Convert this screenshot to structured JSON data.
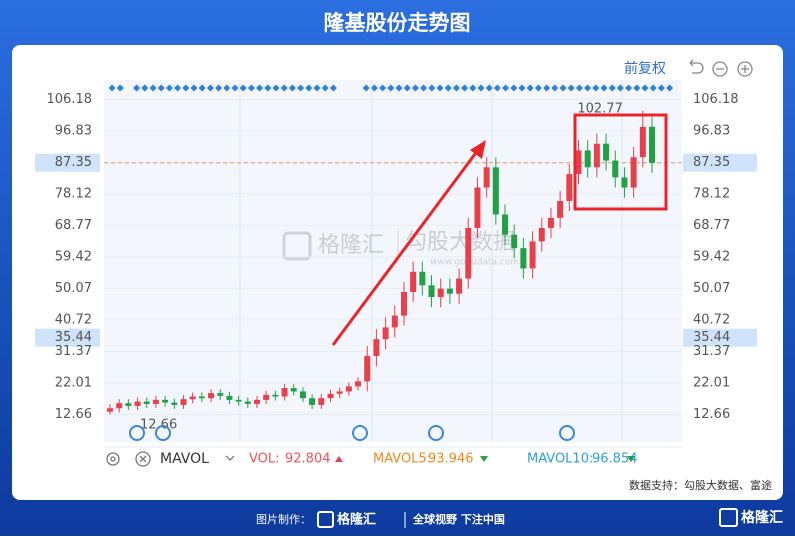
{
  "chart_data": {
    "type": "candlestick",
    "title": "隆基股份走势图",
    "adjust_label": "前复权",
    "ylim": [
      4.5,
      111.9
    ],
    "yticks": [
      12.66,
      22.01,
      31.37,
      40.72,
      50.07,
      59.42,
      68.77,
      78.12,
      87.35,
      96.83,
      106.18
    ],
    "grid": true,
    "last_price": 87.35,
    "cursor_price": 35.44,
    "max_label": 102.77,
    "min_label": 12.66,
    "up_color": "#e8404a",
    "down_color": "#22a046",
    "open": [
      13.5,
      14.5,
      16.0,
      15.2,
      16.5,
      15.8,
      17.0,
      16.2,
      15.5,
      17.2,
      18.0,
      17.5,
      19.0,
      18.2,
      17.0,
      16.5,
      15.8,
      17.0,
      18.5,
      18.0,
      20.5,
      19.5,
      17.5,
      15.5,
      17.5,
      18.8,
      19.5,
      21.0,
      22.5,
      30.0,
      35.0,
      38.5,
      42.0,
      49.0,
      55.0,
      51.0,
      47.5,
      50.0,
      48.5,
      53.0,
      68.0,
      80.0,
      86.0,
      72.0,
      66.0,
      62.0,
      56.0,
      64.0,
      68.0,
      71.0,
      76.0,
      84.0,
      91.0,
      86.0,
      93.0,
      88.0,
      83.0,
      80.0,
      89.0,
      98.0
    ],
    "high": [
      15.7,
      17.2,
      17.2,
      17.7,
      17.7,
      18.2,
      18.2,
      17.4,
      18.4,
      19.2,
      19.2,
      20.2,
      20.2,
      19.4,
      18.2,
      17.7,
      18.2,
      19.7,
      19.7,
      21.7,
      21.7,
      20.7,
      18.7,
      18.7,
      20.0,
      20.7,
      22.2,
      23.7,
      33,
      38,
      41.5,
      45,
      52,
      58,
      58,
      54,
      53,
      53,
      56,
      71,
      83,
      89,
      89,
      75,
      69,
      65,
      67,
      71,
      74,
      79,
      87,
      94,
      94,
      96,
      96,
      91,
      86,
      92,
      102.77,
      101
    ],
    "low": [
      12.66,
      13.3,
      14.0,
      14.0,
      14.6,
      14.6,
      15.0,
      14.3,
      14.3,
      16.0,
      16.3,
      16.3,
      17.0,
      15.8,
      15.3,
      14.6,
      14.6,
      15.8,
      16.8,
      16.8,
      18.3,
      16.3,
      14.3,
      14.3,
      16.3,
      17.6,
      18.3,
      19.8,
      19.5,
      27,
      32,
      35.5,
      39,
      46,
      48,
      44.5,
      44.5,
      45.5,
      45.5,
      50,
      65,
      77,
      69,
      63,
      59,
      53,
      53,
      61,
      65,
      68,
      73,
      81,
      83,
      83,
      85,
      80,
      77,
      77,
      86,
      84.35
    ],
    "close": [
      14.5,
      16.0,
      15.2,
      16.5,
      15.8,
      17.0,
      16.2,
      15.5,
      17.2,
      18.0,
      17.5,
      19.0,
      18.2,
      17.0,
      16.5,
      15.8,
      17.0,
      18.5,
      18.0,
      20.5,
      19.5,
      17.5,
      15.5,
      17.5,
      18.8,
      19.5,
      21.0,
      22.5,
      30.0,
      35.0,
      38.5,
      42.0,
      49.0,
      55.0,
      51.0,
      47.5,
      50.0,
      48.5,
      53.0,
      68.0,
      80.0,
      86.0,
      72.0,
      66.0,
      62.0,
      56.0,
      64.0,
      68.0,
      71.0,
      76.0,
      84.0,
      91.0,
      86.0,
      93.0,
      88.0,
      83.0,
      80.0,
      89.0,
      98.0,
      87.35
    ],
    "indicator_name": "MAVOL",
    "indicators": [
      {
        "label": "VOL:",
        "value": 92.804,
        "color": "#e8545a",
        "direction": "up"
      },
      {
        "label": "MAVOL5:",
        "value": 93.946,
        "color": "#ef8a1e",
        "direction": "down"
      },
      {
        "label": "MAVOL10:",
        "value": 96.854,
        "color": "#2e9fd8",
        "direction": "down"
      }
    ],
    "source": "数据支持：勾股大数据、富途"
  },
  "watermark": {
    "brand": "格隆汇",
    "partner": "勾股大数据",
    "url": "www.gogudata.com"
  },
  "footer": {
    "made_by": "图片制作：",
    "brand": "格隆汇",
    "slogan": "全球视野 下注中国",
    "corner_brand": "格隆汇"
  }
}
